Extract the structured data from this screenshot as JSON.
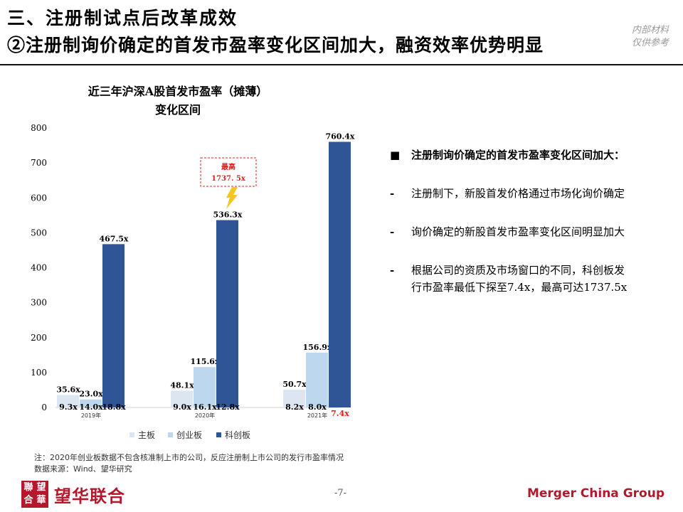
{
  "header": {
    "title_line1": "三、注册制试点后改革成效",
    "title_line2": "②注册制询价确定的首发市盈率变化区间加大，融资效率优势明显",
    "watermark_line1": "内部材料",
    "watermark_line2": "仅供参考"
  },
  "chart_data": {
    "type": "bar",
    "title_line1": "近三年沪深A股首发市盈率（摊薄）",
    "title_line2": "变化区间",
    "categories": [
      "2019年",
      "2020年",
      "2021年"
    ],
    "ylim": [
      0,
      800
    ],
    "yticks": [
      0,
      100,
      200,
      300,
      400,
      500,
      600,
      700,
      800
    ],
    "series": [
      {
        "name": "主板",
        "color": "#dce6f2",
        "max": [
          35.6,
          48.1,
          50.7
        ],
        "min": [
          9.3,
          9.0,
          8.2
        ],
        "max_labels": [
          "35.6x",
          "48.1x",
          "50.7x"
        ],
        "min_labels": [
          "9.3x",
          "9.0x",
          "8.2x"
        ]
      },
      {
        "name": "创业板",
        "color": "#bdd7ee",
        "max": [
          23.0,
          115.6,
          156.9
        ],
        "min": [
          14.0,
          16.1,
          8.0
        ],
        "max_labels": [
          "23.0x",
          "115.6x",
          "156.9x"
        ],
        "min_labels": [
          "14.0x",
          "16.1x",
          "8.0x"
        ]
      },
      {
        "name": "科创板",
        "color": "#2f5597",
        "max": [
          467.5,
          536.3,
          760.4
        ],
        "min": [
          18.8,
          12.8,
          7.4
        ],
        "max_labels": [
          "467.5x",
          "536.3x",
          "760.4x"
        ],
        "min_labels": [
          "18.8x",
          "12.8x",
          "7.4x"
        ]
      }
    ],
    "highlight_color": "#e02020",
    "callout": {
      "line1": "最高",
      "line2": "1737. 5x",
      "color": "#e02020"
    },
    "legend_position": "bottom"
  },
  "bullets": {
    "main_mark": "■",
    "main": "注册制询价确定的首发市盈率变化区间加大：",
    "dash": "-",
    "items": [
      "注册制下，新股首发价格通过市场化询价确定",
      "询价确定的新股首发市盈率变化区间明显加大",
      "根据公司的资质及市场窗口的不同，科创板发行市盈率最低下探至7.4x，最高可达1737.5x"
    ]
  },
  "footnote": {
    "line1": "注：2020年创业板数据不包含核准制上市的公司，反应注册制上市公司的发行市盈率情况",
    "line2": "数据来源：Wind、望华研究"
  },
  "footer": {
    "logo_seal": [
      "聯",
      "望",
      "合",
      "華"
    ],
    "logo_text": "望华联合",
    "page_number": "-7-",
    "brand": "Merger China Group"
  }
}
